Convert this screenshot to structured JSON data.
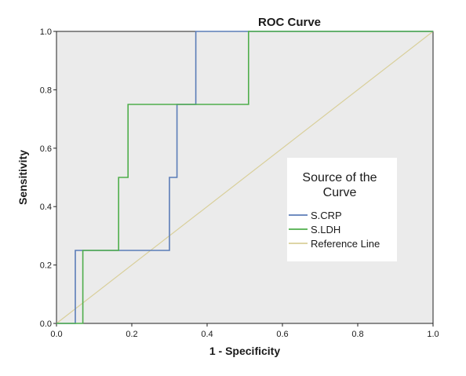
{
  "chart_data": {
    "type": "line",
    "title": "ROC Curve",
    "xlabel": "1 - Specificity",
    "ylabel": "Sensitivity",
    "xlim": [
      0,
      1
    ],
    "ylim": [
      0,
      1
    ],
    "x_ticks": [
      "0.0",
      "0.2",
      "0.4",
      "0.6",
      "0.8",
      "1.0"
    ],
    "y_ticks": [
      "0.0",
      "0.2",
      "0.4",
      "0.6",
      "0.8",
      "1.0"
    ],
    "grid": false,
    "background": "#ebebeb",
    "legend": {
      "title": "Source of the Curve",
      "title_lines": [
        "Source of the",
        "Curve"
      ],
      "placement": "center-right"
    },
    "series": [
      {
        "name": "S.CRP",
        "color": "#5b7db8",
        "x": [
          0,
          0.05,
          0.05,
          0.3,
          0.3,
          0.32,
          0.32,
          0.37,
          0.37,
          1.0
        ],
        "y": [
          0,
          0,
          0.25,
          0.25,
          0.5,
          0.5,
          0.75,
          0.75,
          1.0,
          1.0
        ]
      },
      {
        "name": "S.LDH",
        "color": "#4fae4c",
        "x": [
          0,
          0.07,
          0.07,
          0.165,
          0.165,
          0.19,
          0.19,
          0.51,
          0.51,
          1.0
        ],
        "y": [
          0,
          0,
          0.25,
          0.25,
          0.5,
          0.5,
          0.75,
          0.75,
          1.0,
          1.0
        ]
      },
      {
        "name": "Reference Line",
        "color": "#d9cf9a",
        "x": [
          0,
          1
        ],
        "y": [
          0,
          1
        ]
      }
    ]
  }
}
